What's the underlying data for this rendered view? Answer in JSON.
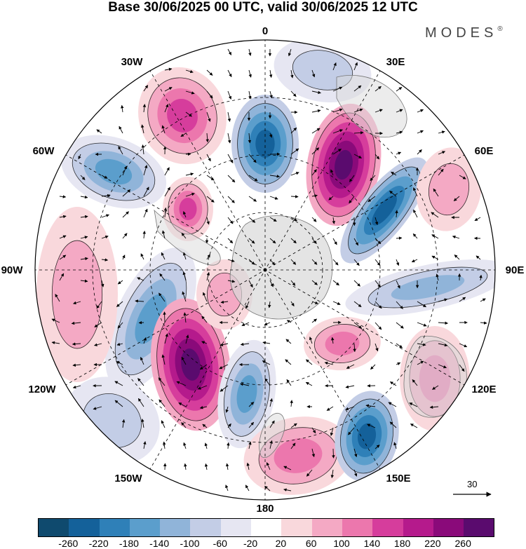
{
  "title": "Base 30/06/2025 00 UTC, valid 30/06/2025 12 UTC",
  "brand": {
    "text": "MODES",
    "mark": "®"
  },
  "longitude_labels": {
    "n0": "0",
    "n30e": "30E",
    "n60e": "60E",
    "n90e": "90E",
    "n120e": "120E",
    "n150e": "150E",
    "n180": "180",
    "n150w": "150W",
    "n120w": "120W",
    "n90w": "90W",
    "n60w": "60W",
    "n30w": "30W"
  },
  "map": {
    "projection": "south polar stereographic",
    "center": "South Pole",
    "background": "#ffffff",
    "land_color": "#dcdcdc",
    "graticule": "dashed"
  },
  "reference_vector": {
    "label": "30"
  },
  "colorbar": {
    "ticks": [
      "-260",
      "-220",
      "-180",
      "-140",
      "-100",
      "-60",
      "-20",
      "20",
      "60",
      "100",
      "140",
      "180",
      "220",
      "260"
    ],
    "colors": [
      "#0f4a6e",
      "#14619a",
      "#2f80b8",
      "#5b9ecc",
      "#90b4d9",
      "#c3cde6",
      "#e6e6f2",
      "#ffffff",
      "#f9d8dc",
      "#f4a9c4",
      "#ec77ad",
      "#d63d9c",
      "#b51a8c",
      "#8a0a7a",
      "#5a0b6e"
    ]
  }
}
